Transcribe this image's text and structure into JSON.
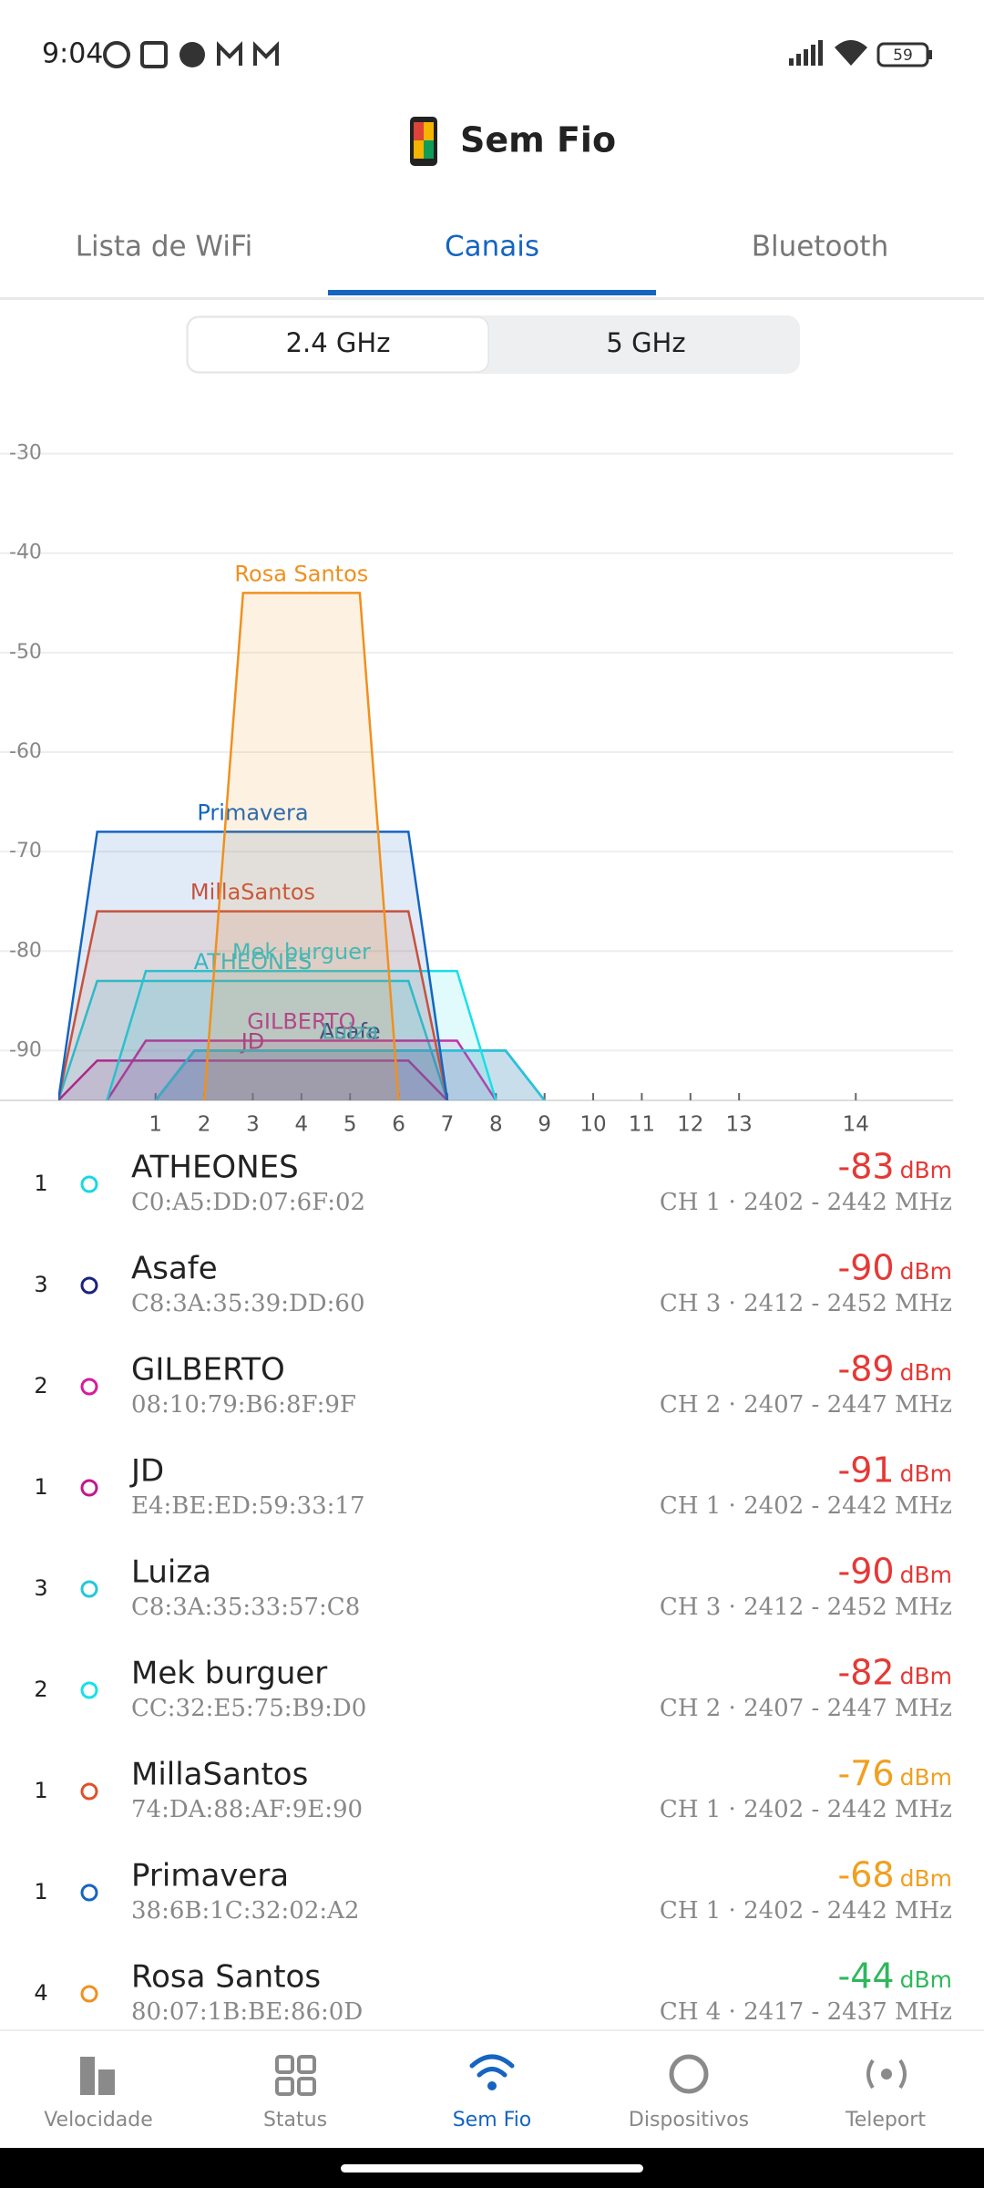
{
  "status_bar": {
    "time": "9:04",
    "battery": "59"
  },
  "header": {
    "title": "Sem Fio"
  },
  "tabs": {
    "items": [
      "Lista de WiFi",
      "Canais",
      "Bluetooth"
    ],
    "active": 1
  },
  "band_toggle": {
    "items": [
      "2.4 GHz",
      "5 GHz"
    ],
    "active": 0
  },
  "chart_data": {
    "type": "channel",
    "ylim": [
      -95,
      -25
    ],
    "yticks": [
      -30,
      -40,
      -50,
      -60,
      -70,
      -80,
      -90
    ],
    "grid": true,
    "xlim": [
      2402,
      2494
    ],
    "xticks": [
      {
        "value": 2412,
        "label": "1"
      },
      {
        "value": 2417,
        "label": "2"
      },
      {
        "value": 2422,
        "label": "3"
      },
      {
        "value": 2427,
        "label": "4"
      },
      {
        "value": 2432,
        "label": "5"
      },
      {
        "value": 2437,
        "label": "6"
      },
      {
        "value": 2442,
        "label": "7"
      },
      {
        "value": 2447,
        "label": "8"
      },
      {
        "value": 2452,
        "label": "9"
      },
      {
        "value": 2457,
        "label": "10"
      },
      {
        "value": 2462,
        "label": "11"
      },
      {
        "value": 2467,
        "label": "12"
      },
      {
        "value": 2472,
        "label": "13"
      },
      {
        "value": 2484,
        "label": "14"
      }
    ],
    "series": [
      {
        "name": "ATHEONES",
        "color": "#1ad8e0",
        "values": [
          -83
        ],
        "range": [
          2402,
          2442
        ]
      },
      {
        "name": "Asafe",
        "color": "#1a237e",
        "values": [
          -90
        ],
        "range": [
          2412,
          2452
        ]
      },
      {
        "name": "GILBERTO",
        "color": "#d81b9c",
        "values": [
          -89
        ],
        "range": [
          2407,
          2447
        ]
      },
      {
        "name": "JD",
        "color": "#c2188f",
        "values": [
          -91
        ],
        "range": [
          2402,
          2442
        ]
      },
      {
        "name": "Luiza",
        "color": "#26c6da",
        "values": [
          -90
        ],
        "range": [
          2412,
          2452
        ]
      },
      {
        "name": "Mek burguer",
        "color": "#18e0e8",
        "values": [
          -82
        ],
        "range": [
          2407,
          2447
        ]
      },
      {
        "name": "MillaSantos",
        "color": "#e0502a",
        "values": [
          -76
        ],
        "range": [
          2402,
          2442
        ]
      },
      {
        "name": "Primavera",
        "color": "#1565c0",
        "values": [
          -68
        ],
        "range": [
          2402,
          2442
        ]
      },
      {
        "name": "Rosa Santos",
        "color": "#f0901e",
        "values": [
          -44
        ],
        "range": [
          2417,
          2437
        ]
      }
    ]
  },
  "networks": {
    "unit": "dBm",
    "items": [
      {
        "count": "1",
        "mac": "C0:A5:DD:07:6F:02",
        "channel": "CH 1 · 2402 - 2442 MHz",
        "signal_color": "#e53935"
      },
      {
        "count": "3",
        "mac": "C8:3A:35:39:DD:60",
        "channel": "CH 3 · 2412 - 2452 MHz",
        "signal_color": "#e53935"
      },
      {
        "count": "2",
        "mac": "08:10:79:B6:8F:9F",
        "channel": "CH 2 · 2407 - 2447 MHz",
        "signal_color": "#e53935"
      },
      {
        "count": "1",
        "mac": "E4:BE:ED:59:33:17",
        "channel": "CH 1 · 2402 - 2442 MHz",
        "signal_color": "#e53935"
      },
      {
        "count": "3",
        "mac": "C8:3A:35:33:57:C8",
        "channel": "CH 3 · 2412 - 2452 MHz",
        "signal_color": "#e53935"
      },
      {
        "count": "2",
        "mac": "CC:32:E5:75:B9:D0",
        "channel": "CH 2 · 2407 - 2447 MHz",
        "signal_color": "#e53935"
      },
      {
        "count": "1",
        "mac": "74:DA:88:AF:9E:90",
        "channel": "CH 1 · 2402 - 2442 MHz",
        "signal_color": "#f0a020"
      },
      {
        "count": "1",
        "mac": "38:6B:1C:32:02:A2",
        "channel": "CH 1 · 2402 - 2442 MHz",
        "signal_color": "#f0a020"
      },
      {
        "count": "4",
        "mac": "80:07:1B:BE:86:0D",
        "channel": "CH 4 · 2417 - 2437 MHz",
        "signal_color": "#2eb85c"
      }
    ]
  },
  "bottom_nav": {
    "items": [
      "Velocidade",
      "Status",
      "Sem Fio",
      "Dispositivos",
      "Teleport"
    ],
    "active": 2
  }
}
